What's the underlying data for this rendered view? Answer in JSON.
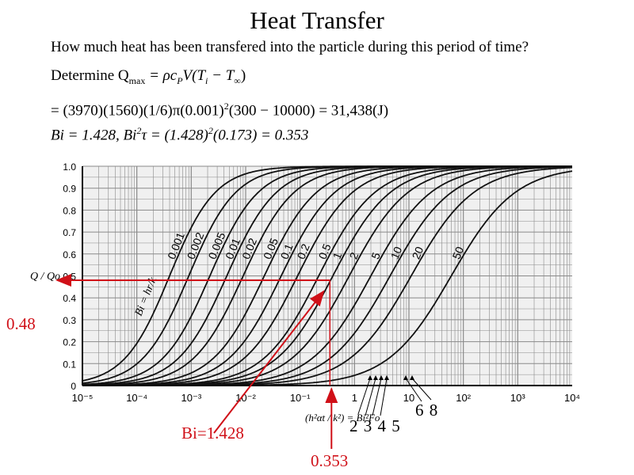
{
  "slide": {
    "title": "Heat Transfer",
    "question": "How much heat has been transfered into the particle during this period of time?",
    "determine_prefix": "Determine Q",
    "determine_sub": "max",
    "determine_eq": " = ρc",
    "determine_sub2": "P",
    "determine_rest": "V(T",
    "determine_sub3": "i",
    "determine_rest2": " − T",
    "determine_sub4": "∞",
    "determine_close": ")",
    "calc_line": "= (3970)(1560)(1/6)π(0.001)",
    "calc_sup": "2",
    "calc_rest": "(300 − 10000) = 31,438(J)",
    "bi_a": "Bi = 1.428,  Bi",
    "bi_sup1": "2",
    "bi_b": "τ = (1.428)",
    "bi_sup2": "2",
    "bi_c": "(0.173) = 0.353"
  },
  "annotations": {
    "q_ratio": "0.48",
    "bi_value": "Bi=1.428",
    "fourier_value": "0.353",
    "bottom_nums_1": "2 3 4 5",
    "bottom_nums_2": "6 8"
  },
  "chart_data": {
    "type": "line",
    "title": "",
    "ylabel": "Q / Qo",
    "xlabel": "(h²αt / k²) = Bi²Fo",
    "xscale": "log",
    "xlim": [
      1e-05,
      10000
    ],
    "ylim": [
      0,
      1.0
    ],
    "x_tick_labels": [
      "10⁻⁵",
      "10⁻⁴",
      "10⁻³",
      "10⁻²",
      "10⁻¹",
      "1",
      "10",
      "10²",
      "10³",
      "10⁴"
    ],
    "y_tick_labels": [
      "0",
      "0.1",
      "0.2",
      "0.3",
      "0.4",
      "0.5",
      "0.6",
      "0.7",
      "0.8",
      "0.9",
      "1.0"
    ],
    "parameter_label": "Bi = hr/k",
    "series": [
      {
        "name": "0.001",
        "midpoint_x": 0.0004
      },
      {
        "name": "0.002",
        "midpoint_x": 0.0009
      },
      {
        "name": "0.005",
        "midpoint_x": 0.0022
      },
      {
        "name": "0.01",
        "midpoint_x": 0.0045
      },
      {
        "name": "0.02",
        "midpoint_x": 0.009
      },
      {
        "name": "0.05",
        "midpoint_x": 0.022
      },
      {
        "name": "0.1",
        "midpoint_x": 0.045
      },
      {
        "name": "0.2",
        "midpoint_x": 0.09
      },
      {
        "name": "0.5",
        "midpoint_x": 0.22
      },
      {
        "name": "1",
        "midpoint_x": 0.4
      },
      {
        "name": "2",
        "midpoint_x": 0.8
      },
      {
        "name": "5",
        "midpoint_x": 2.0
      },
      {
        "name": "10",
        "midpoint_x": 4.5
      },
      {
        "name": "20",
        "midpoint_x": 11
      },
      {
        "name": "50",
        "midpoint_x": 60
      }
    ],
    "readout": {
      "y": 0.48,
      "x": 0.353
    }
  },
  "colors": {
    "accent": "#d01018",
    "paper": "#f0f0f0",
    "grid": "#8a8a8a"
  }
}
